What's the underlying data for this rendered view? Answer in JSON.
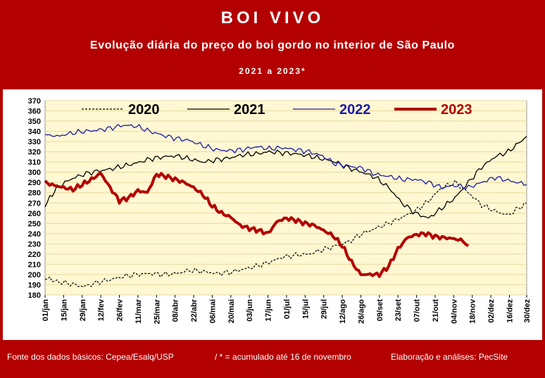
{
  "header": {
    "title": "BOI VIVO",
    "subtitle": "Evolução diária do preço do boi gordo no interior de São Paulo",
    "period": "2021 a 2023*"
  },
  "footer": {
    "source": "Fonte dos dados básicos: Cepea/Esalq/USP",
    "note": "/ * = acumulado até 16 de novembro",
    "credit": "Elaboração e análises: PecSite"
  },
  "colors": {
    "background": "#b30000",
    "plot_area": "#fff8d2",
    "s2020": "#000000",
    "s2021": "#000000",
    "s2022": "#1a1aa8",
    "s2023": "#b30000"
  },
  "chart_data": {
    "type": "line",
    "xlabel": "",
    "ylabel": "",
    "ylim": [
      180,
      370
    ],
    "yticks": [
      "180",
      "190",
      "200",
      "210",
      "220",
      "230",
      "240",
      "250",
      "260",
      "270",
      "280",
      "290",
      "300",
      "310",
      "320",
      "330",
      "340",
      "350",
      "360",
      "370"
    ],
    "x_tick_labels": [
      "01/jan",
      "15/jan",
      "29/jan",
      "12/fev",
      "26/fev",
      "11/mar",
      "25/mar",
      "08/abr",
      "22/abr",
      "06/mai",
      "20/mai",
      "03/jun",
      "17/jun",
      "01/jul",
      "15/jul",
      "29/jul",
      "12/ago",
      "26/ago",
      "09/set",
      "23/set",
      "07/out",
      "21/out",
      "04/nov",
      "18/nov",
      "02/dez",
      "16/dez",
      "30/dez"
    ],
    "x_units": "day of year",
    "legend_position": "top",
    "series": [
      {
        "name": "2020",
        "style": "dashed",
        "x": [
          1,
          10,
          20,
          30,
          40,
          50,
          60,
          70,
          80,
          90,
          100,
          110,
          120,
          130,
          140,
          150,
          160,
          170,
          180,
          190,
          200,
          210,
          220,
          230,
          240,
          250,
          260,
          270,
          280,
          290,
          300,
          310,
          320,
          330,
          340,
          350,
          364
        ],
        "values": [
          197,
          193,
          191,
          188,
          192,
          195,
          198,
          200,
          201,
          200,
          201,
          204,
          203,
          201,
          202,
          205,
          208,
          212,
          217,
          219,
          220,
          224,
          228,
          232,
          240,
          245,
          250,
          256,
          262,
          272,
          285,
          290,
          280,
          268,
          262,
          258,
          270
        ]
      },
      {
        "name": "2021",
        "style": "solid",
        "x": [
          1,
          10,
          20,
          30,
          40,
          50,
          60,
          70,
          80,
          90,
          100,
          110,
          120,
          130,
          140,
          150,
          160,
          170,
          180,
          190,
          200,
          210,
          220,
          230,
          240,
          250,
          260,
          270,
          280,
          290,
          300,
          310,
          320,
          330,
          340,
          350,
          364
        ],
        "values": [
          268,
          285,
          293,
          298,
          301,
          303,
          306,
          309,
          313,
          315,
          316,
          313,
          310,
          312,
          314,
          317,
          318,
          320,
          319,
          318,
          316,
          313,
          310,
          304,
          300,
          295,
          285,
          270,
          260,
          255,
          265,
          275,
          290,
          305,
          315,
          320,
          335
        ]
      },
      {
        "name": "2022",
        "style": "solid",
        "x": [
          1,
          10,
          20,
          30,
          40,
          50,
          60,
          70,
          80,
          90,
          100,
          110,
          120,
          130,
          140,
          150,
          160,
          170,
          180,
          190,
          200,
          210,
          220,
          230,
          240,
          250,
          260,
          270,
          280,
          290,
          300,
          310,
          320,
          330,
          340,
          350,
          364
        ],
        "values": [
          337,
          335,
          338,
          340,
          341,
          343,
          346,
          345,
          340,
          336,
          333,
          331,
          326,
          322,
          321,
          322,
          325,
          323,
          324,
          322,
          320,
          316,
          308,
          306,
          304,
          298,
          296,
          293,
          293,
          290,
          285,
          287,
          285,
          290,
          295,
          292,
          288
        ]
      },
      {
        "name": "2023",
        "style": "thick",
        "x": [
          1,
          8,
          15,
          22,
          29,
          36,
          43,
          50,
          57,
          64,
          71,
          78,
          85,
          92,
          99,
          106,
          113,
          120,
          127,
          134,
          141,
          148,
          155,
          162,
          169,
          176,
          183,
          190,
          197,
          204,
          211,
          218,
          225,
          232,
          239,
          246,
          253,
          260,
          267,
          274,
          281,
          288,
          295,
          302,
          309,
          316,
          320
        ],
        "values": [
          290,
          287,
          285,
          283,
          288,
          293,
          299,
          285,
          272,
          275,
          282,
          280,
          298,
          296,
          293,
          290,
          285,
          278,
          267,
          260,
          256,
          248,
          245,
          243,
          240,
          252,
          255,
          253,
          250,
          248,
          243,
          238,
          228,
          212,
          200,
          200,
          200,
          208,
          225,
          236,
          239,
          240,
          237,
          236,
          235,
          233,
          228
        ]
      }
    ]
  }
}
